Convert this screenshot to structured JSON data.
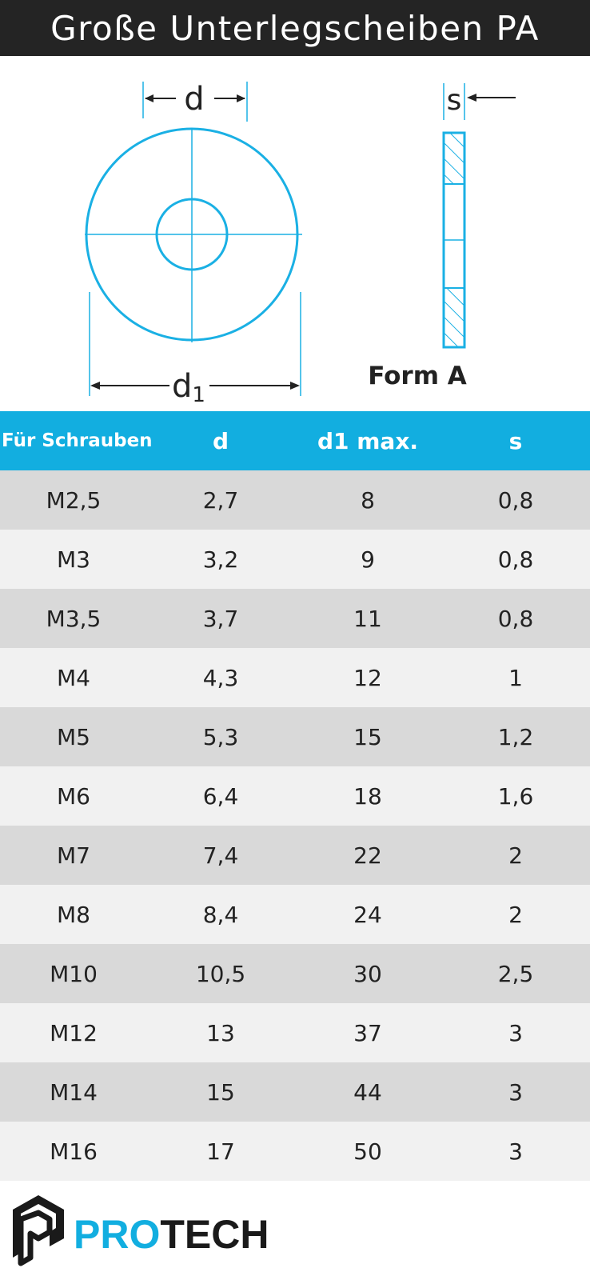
{
  "title": "Große Unterlegscheiben PA",
  "drawing": {
    "label_d": "d",
    "label_d1_main": "d",
    "label_d1_sub": "1",
    "label_s": "s",
    "form_label": "Form A",
    "line_color": "#1ab0e4"
  },
  "table": {
    "headers": [
      "Für Schrauben",
      "d",
      "d1 max.",
      "s"
    ],
    "rows": [
      [
        "M2,5",
        "2,7",
        "8",
        "0,8"
      ],
      [
        "M3",
        "3,2",
        "9",
        "0,8"
      ],
      [
        "M3,5",
        "3,7",
        "11",
        "0,8"
      ],
      [
        "M4",
        "4,3",
        "12",
        "1"
      ],
      [
        "M5",
        "5,3",
        "15",
        "1,2"
      ],
      [
        "M6",
        "6,4",
        "18",
        "1,6"
      ],
      [
        "M7",
        "7,4",
        "22",
        "2"
      ],
      [
        "M8",
        "8,4",
        "24",
        "2"
      ],
      [
        "M10",
        "10,5",
        "30",
        "2,5"
      ],
      [
        "M12",
        "13",
        "37",
        "3"
      ],
      [
        "M14",
        "15",
        "44",
        "3"
      ],
      [
        "M16",
        "17",
        "50",
        "3"
      ]
    ],
    "header_color": "#12aee0",
    "row_colors": [
      "#d9d9d9",
      "#f1f1f1"
    ]
  },
  "logo": {
    "text_part1": "PRO",
    "text_part2": "TECH",
    "color_part1": "#12aee0",
    "color_part2": "#1a1a1a",
    "icon": "hexagon-p-icon"
  }
}
